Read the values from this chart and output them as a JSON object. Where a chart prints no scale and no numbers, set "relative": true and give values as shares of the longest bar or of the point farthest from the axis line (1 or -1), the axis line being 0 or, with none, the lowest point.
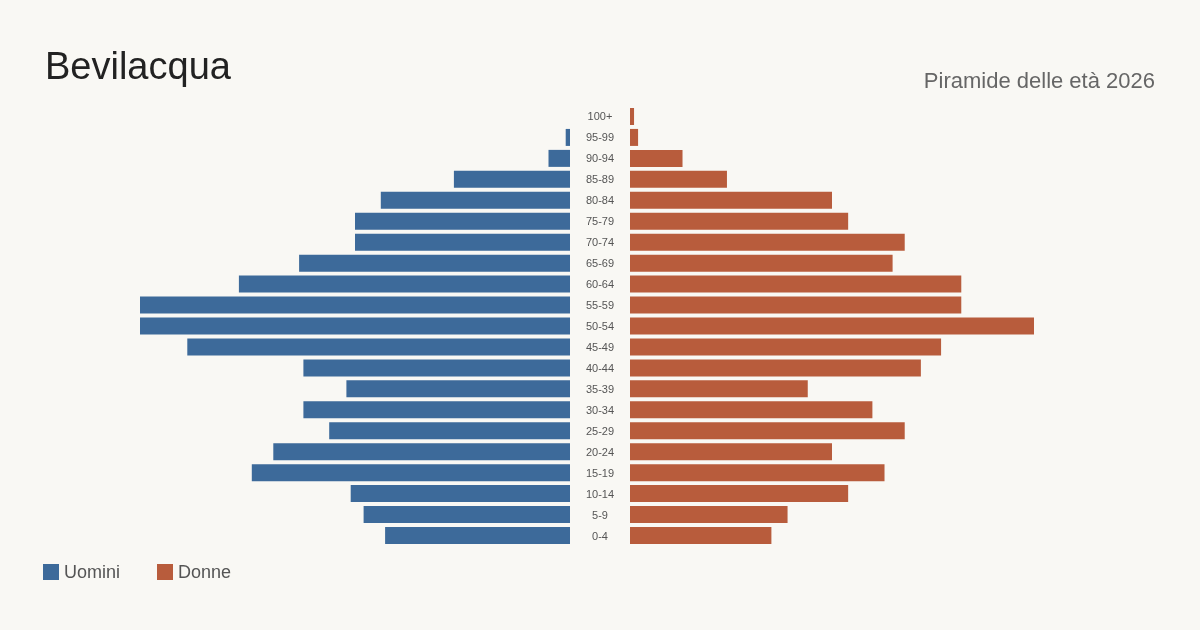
{
  "chart_data": [
    {
      "type": "bar",
      "title": "Bevilacqua",
      "orientation": "horizontal",
      "relative": true,
      "legend": "bottom left",
      "categories": [
        "100+",
        "95-99",
        "90-94",
        "85-89",
        "80-84",
        "75-79",
        "70-74",
        "65-69",
        "60-64",
        "55-59",
        "50-54",
        "45-49",
        "40-44",
        "35-39",
        "30-34",
        "25-29",
        "20-24",
        "15-19",
        "10-14",
        "5-9",
        "0-4"
      ],
      "series": [
        {
          "name": "Uomini",
          "color": "#3d6a9a",
          "values": [
            0,
            -0.01,
            -0.05,
            -0.27,
            -0.44,
            -0.5,
            -0.5,
            -0.63,
            -0.77,
            -1,
            -1,
            -0.89,
            -0.62,
            -0.52,
            -0.62,
            -0.56,
            -0.69,
            -0.74,
            -0.51,
            -0.48,
            -0.43
          ]
        }
      ]
    },
    {
      "type": "bar",
      "subtitle": "Piramide delle età 2026",
      "orientation": "horizontal",
      "relative": true,
      "legend": "bottom left",
      "categories": [
        null,
        null,
        null,
        null,
        null,
        null,
        null,
        null,
        null,
        null,
        null,
        null,
        null,
        null,
        null,
        null,
        null,
        null,
        null,
        null,
        null
      ],
      "series": [
        {
          "name": "Donne",
          "color": "#b85c3c",
          "values": [
            0.01,
            0.02,
            0.13,
            0.24,
            0.5,
            0.54,
            0.68,
            0.65,
            0.82,
            0.82,
            1,
            0.77,
            0.72,
            0.44,
            0.6,
            0.68,
            0.5,
            0.63,
            0.54,
            0.39,
            0.35
          ]
        }
      ]
    }
  ]
}
